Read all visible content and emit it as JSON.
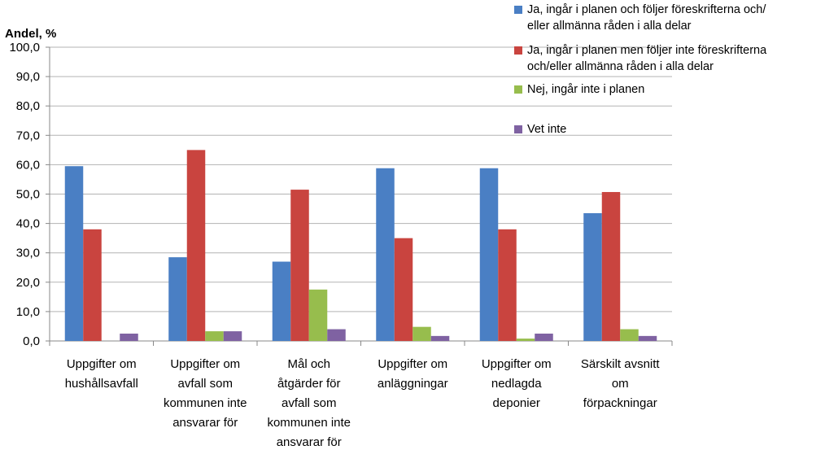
{
  "chart_data": {
    "type": "bar",
    "ylabel": "Andel, %",
    "ylim": [
      0,
      100
    ],
    "ytick_labels": [
      "0,0",
      "10,0",
      "20,0",
      "30,0",
      "40,0",
      "50,0",
      "60,0",
      "70,0",
      "80,0",
      "90,0",
      "100,0"
    ],
    "grid": true,
    "legend_position": "top-right",
    "categories": [
      "Uppgifter om\nhushållsavfall",
      "Uppgifter om\navfall som\nkommunen inte\nansvarar för",
      "Mål och\nåtgärder för\navfall som\nkommunen inte\nansvarar för",
      "Uppgifter om\nanläggningar",
      "Uppgifter om\nnedlagda\ndeponier",
      "Särskilt avsnitt\nom\nförpackningar"
    ],
    "series": [
      {
        "name": "Ja, ingår i planen och följer föreskrifterna och/\neller allmänna råden i alla delar",
        "color": "#4a7fc4",
        "values": [
          59.5,
          28.5,
          27.0,
          58.8,
          58.8,
          43.5
        ]
      },
      {
        "name": "Ja, ingår i planen men följer inte föreskrifterna\noch/eller allmänna råden i alla delar",
        "color": "#c9443f",
        "values": [
          38.0,
          65.0,
          51.5,
          35.0,
          38.0,
          50.7
        ]
      },
      {
        "name": "Nej, ingår inte i planen",
        "color": "#97bd4d",
        "values": [
          0.0,
          3.3,
          17.5,
          4.8,
          0.8,
          4.0
        ]
      },
      {
        "name": "Vet inte",
        "color": "#7f62a2",
        "values": [
          2.5,
          3.3,
          4.0,
          1.7,
          2.5,
          1.7
        ]
      }
    ]
  }
}
